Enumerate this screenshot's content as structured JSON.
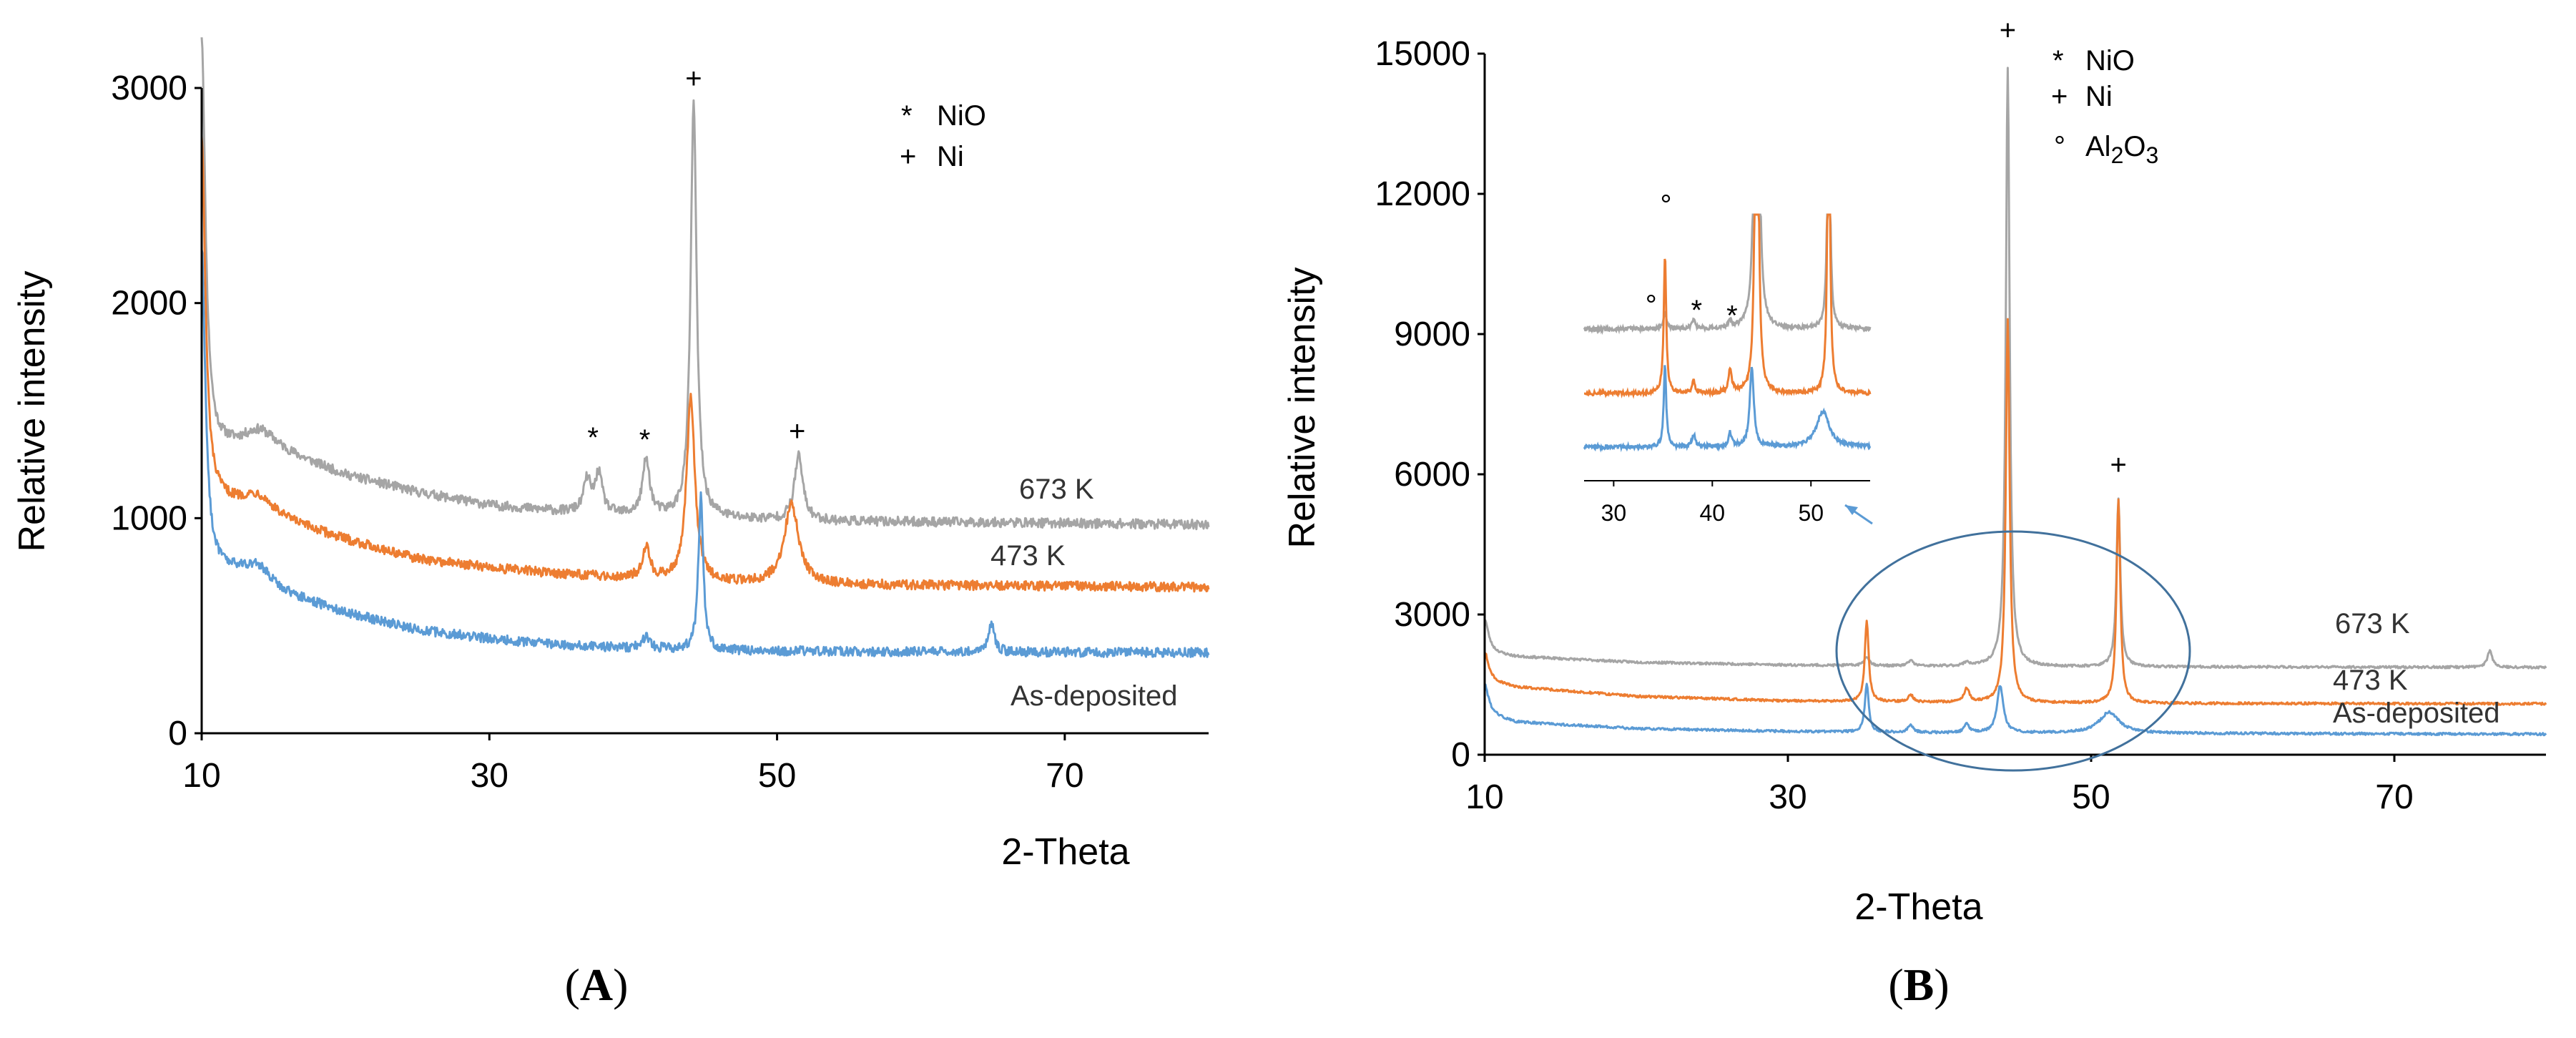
{
  "chart_data": [
    {
      "id": "A",
      "type": "line",
      "panel_label": "(A)",
      "panel_letter": "A",
      "xlabel": "2-Theta",
      "ylabel": "Relative intensity",
      "xlim": [
        10,
        80
      ],
      "ylim": [
        0,
        3000
      ],
      "xticks": [
        10,
        30,
        50,
        70
      ],
      "yticks": [
        0,
        1000,
        2000,
        3000
      ],
      "legend": [
        {
          "symbol": "*",
          "text": "NiO"
        },
        {
          "symbol": "+",
          "text": "Ni"
        }
      ],
      "series": [
        {
          "name": "673 K",
          "label": "673 K",
          "color": "#a5a5a5",
          "noise": 22,
          "baseline": [
            [
              10,
              1400
            ],
            [
              11,
              1330
            ],
            [
              13,
              1330
            ],
            [
              15,
              1320
            ],
            [
              20,
              1200
            ],
            [
              25,
              1120
            ],
            [
              30,
              1060
            ],
            [
              35,
              1030
            ],
            [
              40,
              1010
            ],
            [
              45,
              1000
            ],
            [
              50,
              990
            ],
            [
              55,
              985
            ],
            [
              65,
              980
            ],
            [
              80,
              970
            ]
          ],
          "peaks": [
            [
              10,
              1840,
              0.3
            ],
            [
              14,
              80,
              1.2
            ],
            [
              36.8,
              150,
              0.3
            ],
            [
              37.6,
              180,
              0.3
            ],
            [
              40.9,
              260,
              0.3
            ],
            [
              44.2,
              1930,
              0.25
            ],
            [
              51.5,
              300,
              0.35
            ]
          ]
        },
        {
          "name": "473 K",
          "label": "473 K",
          "color": "#ed7d31",
          "noise": 22,
          "baseline": [
            [
              10,
              1100
            ],
            [
              11,
              1080
            ],
            [
              13,
              1050
            ],
            [
              15,
              1000
            ],
            [
              20,
              900
            ],
            [
              25,
              810
            ],
            [
              30,
              770
            ],
            [
              35,
              740
            ],
            [
              40,
              720
            ],
            [
              45,
              700
            ],
            [
              55,
              690
            ],
            [
              80,
              680
            ]
          ],
          "peaks": [
            [
              10,
              1680,
              0.3
            ],
            [
              14,
              80,
              1.2
            ],
            [
              40.9,
              150,
              0.3
            ],
            [
              44.0,
              850,
              0.35
            ],
            [
              51.0,
              370,
              0.6
            ]
          ]
        },
        {
          "name": "As-deposited",
          "label": "As-deposited",
          "color": "#5b9bd5",
          "noise": 22,
          "baseline": [
            [
              10,
              800
            ],
            [
              11,
              760
            ],
            [
              13,
              730
            ],
            [
              15,
              660
            ],
            [
              20,
              560
            ],
            [
              25,
              480
            ],
            [
              30,
              440
            ],
            [
              35,
              410
            ],
            [
              40,
              395
            ],
            [
              45,
              385
            ],
            [
              55,
              380
            ],
            [
              80,
              375
            ]
          ],
          "peaks": [
            [
              10,
              1450,
              0.3
            ],
            [
              14,
              80,
              1.2
            ],
            [
              40.9,
              60,
              0.3
            ],
            [
              44.7,
              720,
              0.2
            ],
            [
              64.9,
              130,
              0.25
            ]
          ]
        }
      ],
      "annotations": [
        {
          "text": "+",
          "x": 44.2,
          "y": 3000
        },
        {
          "text": "*",
          "x": 37.2,
          "y": 1330
        },
        {
          "text": "*",
          "x": 40.8,
          "y": 1320
        },
        {
          "text": "+",
          "x": 51.4,
          "y": 1360
        }
      ]
    },
    {
      "id": "B",
      "type": "line",
      "panel_label": "(B)",
      "panel_letter": "B",
      "xlabel": "2-Theta",
      "ylabel": "Relative intensity",
      "xlim": [
        10,
        80
      ],
      "ylim": [
        0,
        15000
      ],
      "xticks": [
        10,
        30,
        50,
        70
      ],
      "yticks": [
        0,
        3000,
        6000,
        9000,
        12000,
        15000
      ],
      "legend": [
        {
          "symbol": "*",
          "text": "NiO"
        },
        {
          "symbol": "+",
          "text": "Ni"
        },
        {
          "symbol": "°",
          "text": "Al",
          "sub1": "2",
          "mid": "O",
          "sub2": "3"
        }
      ],
      "series": [
        {
          "name": "673 K",
          "label": "673 K",
          "color": "#a5a5a5",
          "noise": 25,
          "baseline": [
            [
              10,
              2200
            ],
            [
              12,
              2100
            ],
            [
              20,
              1980
            ],
            [
              30,
              1920
            ],
            [
              40,
              1890
            ],
            [
              50,
              1880
            ],
            [
              80,
              1870
            ]
          ],
          "peaks": [
            [
              10,
              700,
              0.3
            ],
            [
              35.2,
              200,
              0.2
            ],
            [
              38.1,
              120,
              0.2
            ],
            [
              41.8,
              80,
              0.2
            ],
            [
              44.5,
              12800,
              0.15
            ],
            [
              51.8,
              3600,
              0.15
            ],
            [
              76.3,
              350,
              0.2
            ]
          ]
        },
        {
          "name": "473 K",
          "label": "473 K",
          "color": "#ed7d31",
          "noise": 25,
          "baseline": [
            [
              10,
              1600
            ],
            [
              12,
              1450
            ],
            [
              20,
              1250
            ],
            [
              30,
              1150
            ],
            [
              40,
              1120
            ],
            [
              50,
              1100
            ],
            [
              80,
              1090
            ]
          ],
          "peaks": [
            [
              10,
              600,
              0.3
            ],
            [
              35.2,
              1750,
              0.15
            ],
            [
              38.1,
              150,
              0.2
            ],
            [
              41.8,
              300,
              0.2
            ],
            [
              44.5,
              8200,
              0.15
            ],
            [
              51.8,
              4350,
              0.15
            ]
          ]
        },
        {
          "name": "As-deposited",
          "label": "As-deposited",
          "color": "#5b9bd5",
          "noise": 25,
          "baseline": [
            [
              10,
              900
            ],
            [
              12,
              700
            ],
            [
              20,
              560
            ],
            [
              30,
              500
            ],
            [
              40,
              470
            ],
            [
              50,
              460
            ],
            [
              80,
              440
            ]
          ],
          "peaks": [
            [
              10,
              600,
              0.3
            ],
            [
              35.2,
              1050,
              0.15
            ],
            [
              38.1,
              160,
              0.2
            ],
            [
              41.8,
              180,
              0.2
            ],
            [
              44.0,
              1000,
              0.25
            ],
            [
              51.2,
              450,
              0.8
            ]
          ]
        }
      ],
      "annotations": [
        {
          "text": "+",
          "x": 44.5,
          "y": 15300
        },
        {
          "text": "+",
          "x": 51.8,
          "y": 6000
        }
      ],
      "inset": {
        "xlim": [
          27,
          56
        ],
        "xticks": [
          30,
          40,
          50
        ],
        "offsets": [
          1600,
          900,
          500
        ],
        "annotations": [
          {
            "text": "°",
            "x": 35.3,
            "y": 1.0
          },
          {
            "text": "°",
            "x": 33.8,
            "y": 0.62
          },
          {
            "text": "*",
            "x": 38.4,
            "y": 0.6
          },
          {
            "text": "*",
            "x": 42.0,
            "y": 0.58
          }
        ]
      }
    }
  ]
}
